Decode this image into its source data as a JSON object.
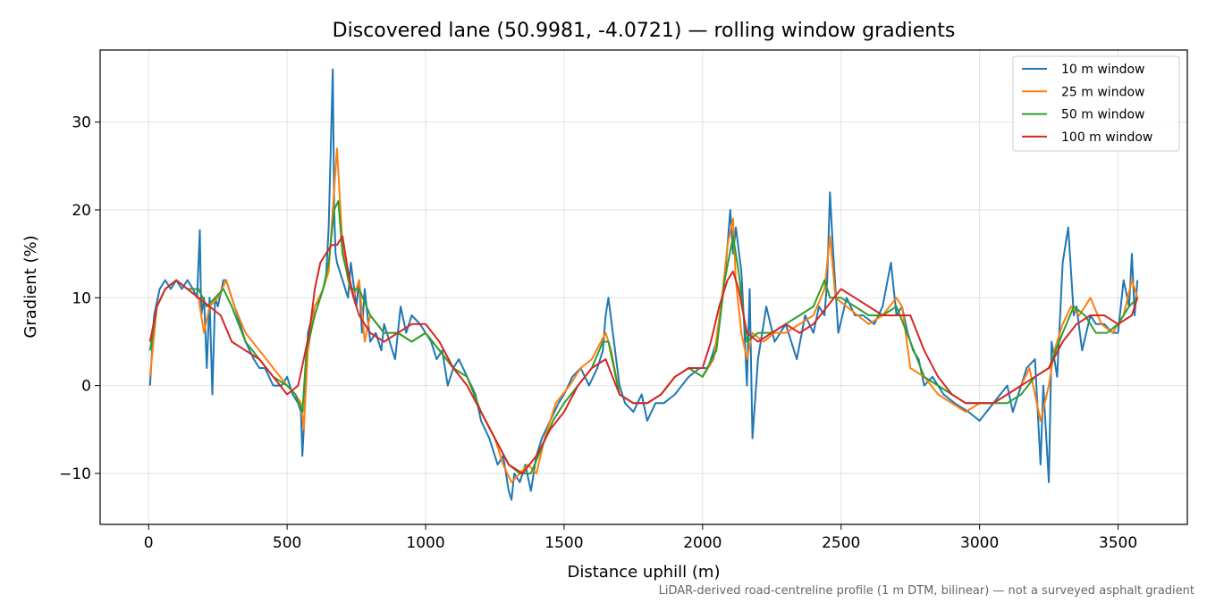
{
  "chart_data": {
    "type": "line",
    "title": "Discovered lane (50.9981, -4.0721) — rolling window gradients",
    "xlabel": "Distance uphill (m)",
    "ylabel": "Gradient (%)",
    "xlim": [
      -175,
      3750
    ],
    "ylim": [
      -15.8,
      38.2
    ],
    "xticks": [
      0,
      500,
      1000,
      1500,
      2000,
      2500,
      3000,
      3500
    ],
    "yticks": [
      -10,
      0,
      10,
      20,
      30
    ],
    "ytick_labels": [
      "−10",
      "0",
      "10",
      "20",
      "30"
    ],
    "grid": true,
    "legend_position": "upper right",
    "footnote": "LiDAR-derived road-centreline profile (1 m DTM, bilinear) — not a surveyed asphalt gradient",
    "series": [
      {
        "name": "10 m window",
        "color": "#1f77b4",
        "x": [
          5,
          20,
          40,
          60,
          80,
          100,
          120,
          140,
          160,
          175,
          185,
          190,
          200,
          210,
          220,
          230,
          240,
          250,
          270,
          280,
          300,
          320,
          350,
          380,
          400,
          420,
          450,
          480,
          500,
          520,
          540,
          550,
          555,
          560,
          575,
          600,
          620,
          640,
          650,
          660,
          665,
          670,
          675,
          680,
          690,
          700,
          720,
          730,
          750,
          760,
          770,
          780,
          800,
          820,
          840,
          850,
          870,
          890,
          900,
          910,
          930,
          950,
          980,
          1000,
          1020,
          1040,
          1060,
          1080,
          1100,
          1120,
          1150,
          1180,
          1200,
          1230,
          1260,
          1280,
          1300,
          1310,
          1320,
          1340,
          1360,
          1380,
          1400,
          1420,
          1450,
          1480,
          1500,
          1530,
          1560,
          1590,
          1620,
          1640,
          1650,
          1660,
          1680,
          1700,
          1720,
          1750,
          1780,
          1800,
          1830,
          1860,
          1900,
          1950,
          1990,
          2020,
          2050,
          2080,
          2090,
          2100,
          2110,
          2120,
          2140,
          2150,
          2160,
          2170,
          2180,
          2200,
          2230,
          2260,
          2300,
          2340,
          2370,
          2400,
          2420,
          2440,
          2450,
          2460,
          2470,
          2490,
          2520,
          2550,
          2580,
          2620,
          2650,
          2680,
          2700,
          2720,
          2740,
          2760,
          2780,
          2800,
          2830,
          2870,
          2910,
          2960,
          3000,
          3050,
          3100,
          3120,
          3150,
          3170,
          3200,
          3220,
          3230,
          3250,
          3260,
          3280,
          3300,
          3320,
          3340,
          3350,
          3370,
          3400,
          3420,
          3450,
          3480,
          3500,
          3520,
          3540,
          3550,
          3560,
          3570
        ],
        "y": [
          0,
          8,
          11,
          12,
          11,
          12,
          11,
          12,
          11,
          10,
          17.7,
          8,
          10,
          2,
          10,
          -1,
          10,
          9,
          12,
          12,
          10,
          8,
          5,
          3,
          2,
          2,
          0,
          0,
          1,
          -1,
          -2,
          -3,
          -8,
          -5,
          6,
          9,
          10,
          12,
          18,
          30,
          36,
          20,
          15,
          14,
          13,
          12,
          10,
          14,
          9,
          12,
          6,
          11,
          5,
          6,
          4,
          7,
          5,
          3,
          6,
          9,
          6,
          8,
          7,
          6,
          5,
          3,
          4,
          0,
          2,
          3,
          1,
          -1,
          -4,
          -6,
          -9,
          -8,
          -12,
          -13,
          -10,
          -11,
          -9,
          -12,
          -8,
          -6,
          -4,
          -2,
          -1,
          1,
          2,
          0,
          2,
          4,
          8,
          10,
          5,
          0,
          -2,
          -3,
          -1,
          -4,
          -2,
          -2,
          -1,
          1,
          2,
          2,
          5,
          12,
          16,
          20,
          15,
          18,
          13,
          7,
          0,
          11,
          -6,
          3,
          9,
          5,
          7,
          3,
          8,
          6,
          9,
          8,
          12,
          22,
          16,
          6,
          10,
          8,
          8,
          7,
          9,
          14,
          8,
          9,
          6,
          4,
          3,
          0,
          1,
          -1,
          -2,
          -3,
          -4,
          -2,
          0,
          -3,
          0,
          2,
          3,
          -9,
          0,
          -11,
          5,
          1,
          14,
          18,
          8,
          9,
          4,
          8,
          7,
          7,
          6,
          6,
          12,
          9,
          15,
          8,
          12
        ]
      },
      {
        "name": "25 m window",
        "color": "#ff7f0e",
        "x": [
          5,
          30,
          60,
          100,
          140,
          180,
          200,
          220,
          250,
          280,
          310,
          350,
          400,
          450,
          500,
          530,
          550,
          560,
          575,
          600,
          630,
          650,
          665,
          680,
          700,
          720,
          740,
          760,
          780,
          800,
          850,
          900,
          950,
          1000,
          1050,
          1100,
          1150,
          1200,
          1250,
          1280,
          1310,
          1340,
          1370,
          1400,
          1430,
          1470,
          1520,
          1560,
          1600,
          1650,
          1670,
          1700,
          1750,
          1800,
          1850,
          1900,
          1950,
          2000,
          2040,
          2070,
          2090,
          2110,
          2120,
          2140,
          2160,
          2180,
          2220,
          2260,
          2300,
          2350,
          2400,
          2440,
          2460,
          2480,
          2520,
          2560,
          2600,
          2650,
          2700,
          2720,
          2750,
          2800,
          2850,
          2900,
          2950,
          3000,
          3050,
          3100,
          3150,
          3180,
          3220,
          3250,
          3270,
          3300,
          3330,
          3360,
          3400,
          3440,
          3480,
          3520,
          3550,
          3570
        ],
        "y": [
          1,
          9,
          11,
          12,
          11,
          10,
          6,
          9,
          10,
          12,
          9,
          6,
          4,
          2,
          0,
          -1,
          -2,
          -5,
          4,
          9,
          11,
          13,
          20,
          27,
          16,
          12,
          10,
          12,
          5,
          8,
          6,
          6,
          5,
          6,
          4,
          2,
          1,
          -3,
          -6,
          -9,
          -11,
          -10,
          -9,
          -10,
          -6,
          -2,
          0,
          2,
          3,
          6,
          4,
          -1,
          -2,
          -2,
          -1,
          1,
          2,
          1,
          3,
          10,
          16,
          19,
          12,
          6,
          3,
          6,
          5,
          6,
          6,
          7,
          8,
          11,
          17,
          10,
          9,
          8,
          7,
          8,
          10,
          9,
          2,
          1,
          -1,
          -2,
          -3,
          -2,
          -2,
          -1,
          0,
          2,
          -4,
          0,
          4,
          7,
          9,
          8,
          10,
          7,
          6,
          8,
          12,
          10
        ]
      },
      {
        "name": "50 m window",
        "color": "#2ca02c",
        "x": [
          5,
          30,
          60,
          100,
          140,
          180,
          210,
          240,
          270,
          300,
          350,
          400,
          450,
          500,
          530,
          555,
          570,
          600,
          630,
          650,
          670,
          685,
          700,
          730,
          760,
          800,
          850,
          900,
          950,
          1000,
          1050,
          1100,
          1150,
          1200,
          1250,
          1300,
          1340,
          1380,
          1420,
          1460,
          1500,
          1550,
          1600,
          1640,
          1660,
          1700,
          1750,
          1800,
          1850,
          1900,
          1950,
          2000,
          2050,
          2080,
          2110,
          2130,
          2160,
          2200,
          2250,
          2300,
          2350,
          2400,
          2440,
          2460,
          2500,
          2550,
          2600,
          2650,
          2700,
          2750,
          2800,
          2850,
          2900,
          2950,
          3000,
          3050,
          3100,
          3150,
          3200,
          3250,
          3300,
          3340,
          3380,
          3420,
          3460,
          3500,
          3540,
          3570
        ],
        "y": [
          4,
          9,
          11,
          12,
          11,
          11,
          9,
          10,
          11,
          9,
          5,
          3,
          1,
          0,
          -1,
          -3,
          4,
          8,
          11,
          14,
          20,
          21,
          15,
          11,
          11,
          8,
          6,
          6,
          5,
          6,
          4,
          2,
          1,
          -3,
          -6,
          -9,
          -10,
          -10,
          -7,
          -4,
          -2,
          0,
          2,
          5,
          5,
          -1,
          -2,
          -2,
          -1,
          1,
          2,
          1,
          4,
          12,
          17,
          13,
          5,
          6,
          6,
          7,
          8,
          9,
          12,
          10,
          10,
          9,
          8,
          8,
          9,
          5,
          1,
          0,
          -1,
          -2,
          -2,
          -2,
          -2,
          -1,
          1,
          2,
          6,
          9,
          8,
          6,
          6,
          7,
          9,
          10
        ]
      },
      {
        "name": "100 m window",
        "color": "#d62728",
        "x": [
          5,
          30,
          60,
          100,
          140,
          180,
          220,
          260,
          300,
          350,
          400,
          450,
          500,
          540,
          560,
          580,
          600,
          620,
          640,
          660,
          680,
          700,
          720,
          740,
          760,
          800,
          850,
          900,
          950,
          1000,
          1050,
          1100,
          1150,
          1200,
          1250,
          1300,
          1350,
          1400,
          1450,
          1500,
          1550,
          1600,
          1650,
          1700,
          1750,
          1800,
          1850,
          1900,
          1950,
          2000,
          2030,
          2060,
          2090,
          2110,
          2130,
          2160,
          2200,
          2250,
          2300,
          2350,
          2400,
          2450,
          2500,
          2550,
          2600,
          2650,
          2700,
          2750,
          2800,
          2850,
          2900,
          2950,
          3000,
          3050,
          3100,
          3150,
          3200,
          3250,
          3300,
          3350,
          3400,
          3450,
          3500,
          3550,
          3570
        ],
        "y": [
          5,
          9,
          11,
          12,
          11,
          10,
          9,
          8,
          5,
          4,
          3,
          1,
          -1,
          0,
          3,
          6,
          11,
          14,
          15,
          16,
          16,
          17,
          13,
          10,
          8,
          6,
          5,
          6,
          7,
          7,
          5,
          2,
          0,
          -3,
          -6,
          -9,
          -10,
          -8,
          -5,
          -3,
          0,
          2,
          3,
          -1,
          -2,
          -2,
          -1,
          1,
          2,
          2,
          5,
          9,
          12,
          13,
          11,
          6,
          5,
          6,
          7,
          6,
          7,
          9,
          11,
          10,
          9,
          8,
          8,
          8,
          4,
          1,
          -1,
          -2,
          -2,
          -2,
          -1,
          0,
          1,
          2,
          5,
          7,
          8,
          8,
          7,
          8,
          10
        ]
      }
    ]
  }
}
